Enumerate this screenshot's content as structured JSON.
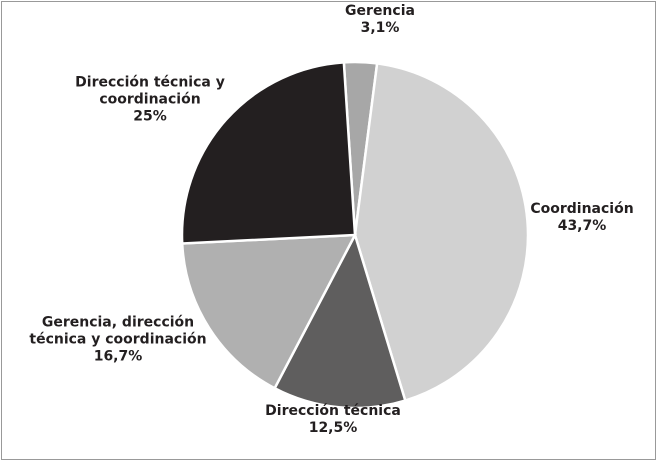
{
  "chart_data": {
    "type": "pie",
    "categories": [
      "Gerencia",
      "Coordinación",
      "Dirección técnica",
      "Gerencia, dirección técnica y coordinación",
      "Dirección técnica y coordinación"
    ],
    "values": [
      3.1,
      43.7,
      12.5,
      16.7,
      25
    ],
    "value_labels": [
      "3,1%",
      "43,7%",
      "12,5%",
      "16,7%",
      "25%"
    ],
    "colors": [
      "#a7a7a7",
      "#d1d1d1",
      "#5f5e5e",
      "#b0b0b0",
      "#231f20"
    ]
  }
}
